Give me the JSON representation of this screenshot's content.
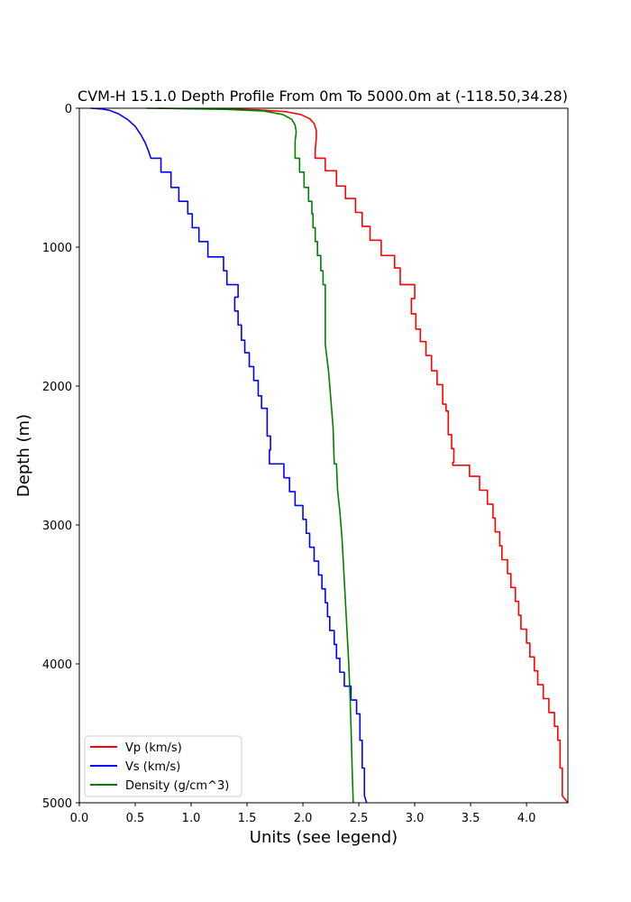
{
  "chart_data": {
    "type": "line",
    "title": "CVM-H 15.1.0 Depth Profile From 0m To 5000.0m at (-118.50,34.28)",
    "xlabel": "Units (see legend)",
    "ylabel": "Depth (m)",
    "xlim": [
      0.0,
      4.37
    ],
    "ylim": [
      5000,
      0
    ],
    "y_inverted": true,
    "grid": false,
    "legend_placement": "lower-left",
    "x_ticks": [
      "0.0",
      "0.5",
      "1.0",
      "1.5",
      "2.0",
      "2.5",
      "3.0",
      "3.5",
      "4.0"
    ],
    "y_ticks": [
      "0",
      "1000",
      "2000",
      "3000",
      "4000",
      "5000"
    ],
    "series": [
      {
        "name": "Vp (km/s)",
        "color": "#ff0000",
        "points": [
          [
            0.7,
            0
          ],
          [
            1.3,
            5
          ],
          [
            1.6,
            12
          ],
          [
            1.85,
            25
          ],
          [
            1.98,
            45
          ],
          [
            2.06,
            75
          ],
          [
            2.1,
            110
          ],
          [
            2.12,
            160
          ],
          [
            2.12,
            210
          ],
          [
            2.11,
            300
          ],
          [
            2.11,
            360
          ],
          [
            2.2,
            360
          ],
          [
            2.2,
            450
          ],
          [
            2.3,
            450
          ],
          [
            2.3,
            560
          ],
          [
            2.38,
            560
          ],
          [
            2.38,
            650
          ],
          [
            2.47,
            650
          ],
          [
            2.47,
            750
          ],
          [
            2.53,
            750
          ],
          [
            2.53,
            850
          ],
          [
            2.6,
            850
          ],
          [
            2.6,
            950
          ],
          [
            2.7,
            950
          ],
          [
            2.7,
            1060
          ],
          [
            2.82,
            1060
          ],
          [
            2.82,
            1150
          ],
          [
            2.87,
            1150
          ],
          [
            2.87,
            1270
          ],
          [
            3.0,
            1270
          ],
          [
            3.0,
            1370
          ],
          [
            2.97,
            1370
          ],
          [
            2.97,
            1480
          ],
          [
            3.01,
            1480
          ],
          [
            3.01,
            1590
          ],
          [
            3.05,
            1590
          ],
          [
            3.05,
            1680
          ],
          [
            3.1,
            1680
          ],
          [
            3.1,
            1780
          ],
          [
            3.15,
            1780
          ],
          [
            3.15,
            1890
          ],
          [
            3.2,
            1890
          ],
          [
            3.2,
            1990
          ],
          [
            3.25,
            1990
          ],
          [
            3.25,
            2130
          ],
          [
            3.28,
            2130
          ],
          [
            3.28,
            2180
          ],
          [
            3.3,
            2180
          ],
          [
            3.3,
            2350
          ],
          [
            3.33,
            2350
          ],
          [
            3.33,
            2450
          ],
          [
            3.35,
            2450
          ],
          [
            3.35,
            2550
          ],
          [
            3.34,
            2550
          ],
          [
            3.34,
            2570
          ],
          [
            3.49,
            2570
          ],
          [
            3.49,
            2650
          ],
          [
            3.58,
            2650
          ],
          [
            3.58,
            2750
          ],
          [
            3.65,
            2750
          ],
          [
            3.65,
            2850
          ],
          [
            3.7,
            2850
          ],
          [
            3.7,
            2950
          ],
          [
            3.72,
            2950
          ],
          [
            3.72,
            3050
          ],
          [
            3.76,
            3050
          ],
          [
            3.76,
            3150
          ],
          [
            3.78,
            3150
          ],
          [
            3.78,
            3250
          ],
          [
            3.83,
            3250
          ],
          [
            3.83,
            3350
          ],
          [
            3.86,
            3350
          ],
          [
            3.86,
            3450
          ],
          [
            3.9,
            3450
          ],
          [
            3.9,
            3550
          ],
          [
            3.93,
            3550
          ],
          [
            3.93,
            3650
          ],
          [
            3.95,
            3650
          ],
          [
            3.95,
            3750
          ],
          [
            4.0,
            3750
          ],
          [
            4.0,
            3850
          ],
          [
            4.03,
            3850
          ],
          [
            4.03,
            3950
          ],
          [
            4.07,
            3950
          ],
          [
            4.07,
            4050
          ],
          [
            4.1,
            4050
          ],
          [
            4.1,
            4150
          ],
          [
            4.15,
            4150
          ],
          [
            4.15,
            4250
          ],
          [
            4.2,
            4250
          ],
          [
            4.2,
            4350
          ],
          [
            4.25,
            4350
          ],
          [
            4.25,
            4450
          ],
          [
            4.28,
            4450
          ],
          [
            4.28,
            4550
          ],
          [
            4.3,
            4550
          ],
          [
            4.3,
            4750
          ],
          [
            4.32,
            4750
          ],
          [
            4.32,
            4950
          ],
          [
            4.37,
            5000
          ]
        ]
      },
      {
        "name": "Vs (km/s)",
        "color": "#0000ff",
        "points": [
          [
            0.1,
            0
          ],
          [
            0.2,
            5
          ],
          [
            0.27,
            15
          ],
          [
            0.35,
            40
          ],
          [
            0.43,
            80
          ],
          [
            0.5,
            130
          ],
          [
            0.55,
            190
          ],
          [
            0.59,
            250
          ],
          [
            0.62,
            310
          ],
          [
            0.64,
            360
          ],
          [
            0.73,
            360
          ],
          [
            0.73,
            460
          ],
          [
            0.82,
            460
          ],
          [
            0.82,
            570
          ],
          [
            0.89,
            570
          ],
          [
            0.89,
            670
          ],
          [
            0.97,
            670
          ],
          [
            0.97,
            760
          ],
          [
            1.01,
            760
          ],
          [
            1.01,
            860
          ],
          [
            1.07,
            860
          ],
          [
            1.07,
            960
          ],
          [
            1.15,
            960
          ],
          [
            1.15,
            1070
          ],
          [
            1.29,
            1070
          ],
          [
            1.29,
            1170
          ],
          [
            1.32,
            1170
          ],
          [
            1.32,
            1270
          ],
          [
            1.42,
            1270
          ],
          [
            1.42,
            1360
          ],
          [
            1.39,
            1360
          ],
          [
            1.39,
            1460
          ],
          [
            1.42,
            1460
          ],
          [
            1.42,
            1560
          ],
          [
            1.45,
            1560
          ],
          [
            1.45,
            1670
          ],
          [
            1.48,
            1670
          ],
          [
            1.48,
            1760
          ],
          [
            1.52,
            1760
          ],
          [
            1.52,
            1860
          ],
          [
            1.56,
            1860
          ],
          [
            1.56,
            1960
          ],
          [
            1.6,
            1960
          ],
          [
            1.6,
            2070
          ],
          [
            1.63,
            2070
          ],
          [
            1.63,
            2160
          ],
          [
            1.68,
            2160
          ],
          [
            1.68,
            2360
          ],
          [
            1.71,
            2360
          ],
          [
            1.71,
            2460
          ],
          [
            1.7,
            2460
          ],
          [
            1.7,
            2560
          ],
          [
            1.83,
            2560
          ],
          [
            1.83,
            2660
          ],
          [
            1.88,
            2660
          ],
          [
            1.88,
            2760
          ],
          [
            1.93,
            2760
          ],
          [
            1.93,
            2860
          ],
          [
            2.0,
            2860
          ],
          [
            2.0,
            2960
          ],
          [
            2.03,
            2960
          ],
          [
            2.03,
            3060
          ],
          [
            2.06,
            3060
          ],
          [
            2.06,
            3160
          ],
          [
            2.1,
            3160
          ],
          [
            2.1,
            3260
          ],
          [
            2.14,
            3260
          ],
          [
            2.14,
            3360
          ],
          [
            2.17,
            3360
          ],
          [
            2.17,
            3460
          ],
          [
            2.2,
            3460
          ],
          [
            2.2,
            3560
          ],
          [
            2.22,
            3560
          ],
          [
            2.22,
            3660
          ],
          [
            2.24,
            3660
          ],
          [
            2.24,
            3760
          ],
          [
            2.28,
            3760
          ],
          [
            2.28,
            3860
          ],
          [
            2.3,
            3860
          ],
          [
            2.3,
            3960
          ],
          [
            2.33,
            3960
          ],
          [
            2.33,
            4060
          ],
          [
            2.37,
            4060
          ],
          [
            2.37,
            4160
          ],
          [
            2.43,
            4160
          ],
          [
            2.43,
            4260
          ],
          [
            2.48,
            4260
          ],
          [
            2.48,
            4360
          ],
          [
            2.51,
            4360
          ],
          [
            2.51,
            4550
          ],
          [
            2.53,
            4550
          ],
          [
            2.53,
            4750
          ],
          [
            2.55,
            4750
          ],
          [
            2.55,
            4950
          ],
          [
            2.57,
            5000
          ]
        ]
      },
      {
        "name": "Density (g/cm^3)",
        "color": "#008000",
        "points": [
          [
            0.6,
            0
          ],
          [
            1.3,
            8
          ],
          [
            1.65,
            20
          ],
          [
            1.82,
            45
          ],
          [
            1.9,
            80
          ],
          [
            1.93,
            120
          ],
          [
            1.94,
            170
          ],
          [
            1.93,
            240
          ],
          [
            1.93,
            320
          ],
          [
            1.93,
            360
          ],
          [
            1.97,
            360
          ],
          [
            1.97,
            460
          ],
          [
            2.01,
            460
          ],
          [
            2.01,
            570
          ],
          [
            2.05,
            570
          ],
          [
            2.05,
            670
          ],
          [
            2.08,
            670
          ],
          [
            2.08,
            760
          ],
          [
            2.09,
            760
          ],
          [
            2.09,
            860
          ],
          [
            2.11,
            860
          ],
          [
            2.11,
            960
          ],
          [
            2.13,
            960
          ],
          [
            2.13,
            1060
          ],
          [
            2.16,
            1060
          ],
          [
            2.16,
            1170
          ],
          [
            2.18,
            1170
          ],
          [
            2.18,
            1270
          ],
          [
            2.2,
            1270
          ],
          [
            2.2,
            1370
          ],
          [
            2.2,
            1700
          ],
          [
            2.23,
            1900
          ],
          [
            2.25,
            2100
          ],
          [
            2.27,
            2300
          ],
          [
            2.28,
            2560
          ],
          [
            2.3,
            2560
          ],
          [
            2.31,
            2750
          ],
          [
            2.33,
            2900
          ],
          [
            2.35,
            3100
          ],
          [
            2.37,
            3400
          ],
          [
            2.39,
            3700
          ],
          [
            2.41,
            4000
          ],
          [
            2.42,
            4200
          ],
          [
            2.43,
            4450
          ],
          [
            2.44,
            4750
          ],
          [
            2.45,
            5000
          ]
        ]
      }
    ]
  }
}
